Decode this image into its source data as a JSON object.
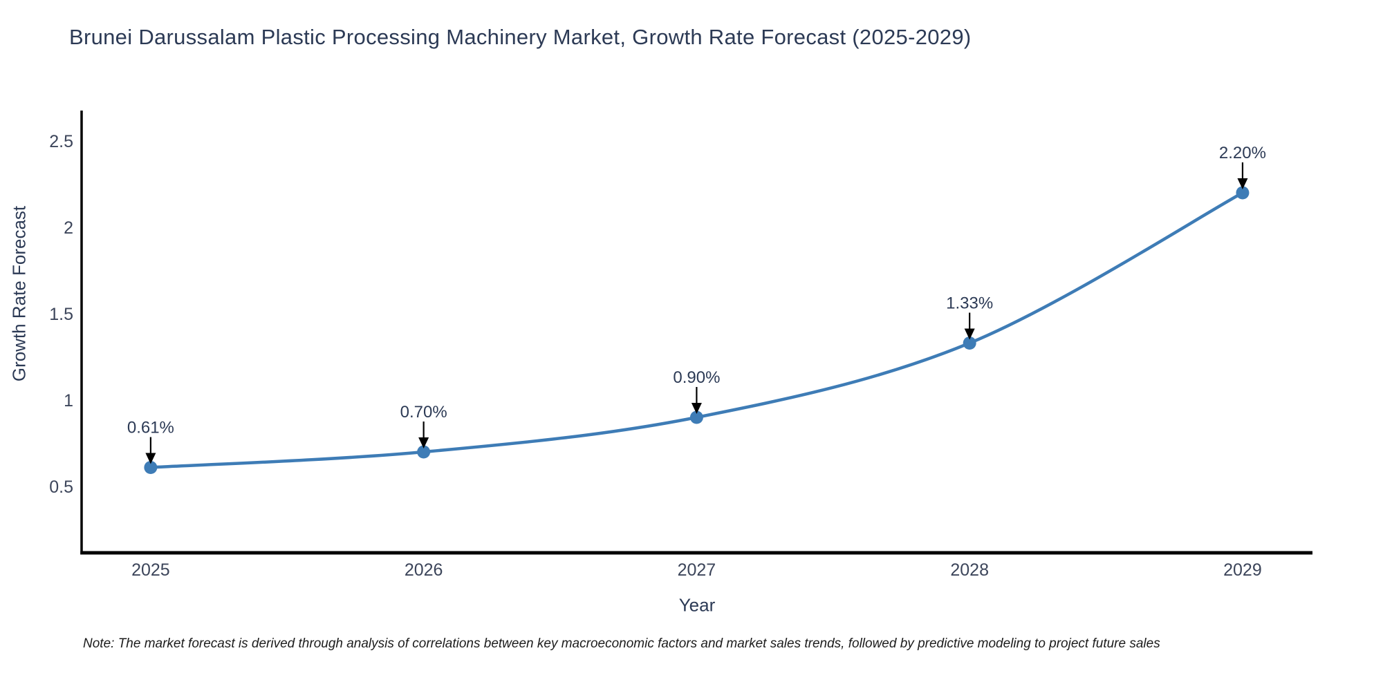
{
  "title": "Brunei Darussalam Plastic Processing Machinery Market, Growth Rate Forecast (2025-2029)",
  "note": "Note: The market forecast is derived through analysis of correlations between key macroeconomic factors and market sales trends, followed by predictive modeling to project future sales",
  "chart_data": {
    "type": "line",
    "title": "Brunei Darussalam Plastic Processing Machinery Market, Growth Rate Forecast (2025-2029)",
    "xlabel": "Year",
    "ylabel": "Growth Rate Forecast",
    "x": [
      2025,
      2026,
      2027,
      2028,
      2029
    ],
    "values": [
      0.61,
      0.7,
      0.9,
      1.33,
      2.2
    ],
    "point_labels": [
      "0.61%",
      "0.70%",
      "0.90%",
      "1.33%",
      "2.20%"
    ],
    "xticks": [
      "2025",
      "2026",
      "2027",
      "2028",
      "2029"
    ],
    "yticks": [
      0.5,
      1,
      1.5,
      2,
      2.5
    ],
    "ytick_labels": [
      "0.5",
      "1",
      "1.5",
      "2",
      "2.5"
    ],
    "xlim": [
      2024.747,
      2029.256
    ],
    "ylim": [
      0.116,
      2.676
    ],
    "line_shape": "spline",
    "grid": false,
    "legend": "none",
    "colors": {
      "line": "#3e7cb6",
      "marker": "#3e7cb6",
      "annotation_arrow": "#000000",
      "text": "#2c3a55",
      "axis": "#000000",
      "background": "#ffffff"
    }
  }
}
